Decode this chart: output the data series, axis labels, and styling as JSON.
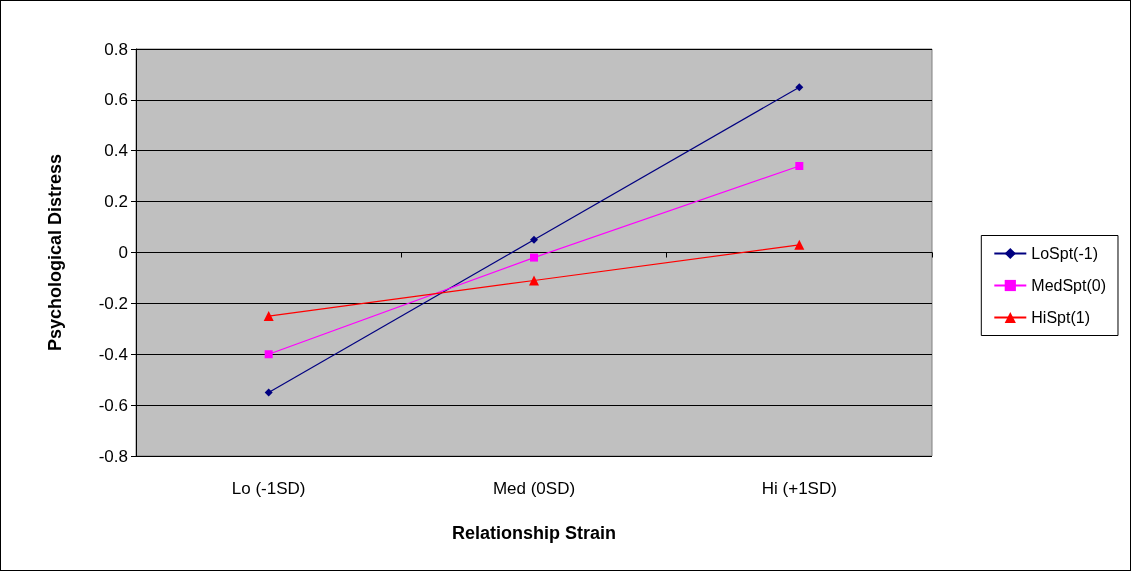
{
  "chart_data": {
    "type": "line",
    "xlabel": "Relationship Strain",
    "ylabel": "Psychological Distress",
    "categories": [
      "Lo (-1SD)",
      "Med (0SD)",
      "Hi (+1SD)"
    ],
    "series": [
      {
        "name": "LoSpt(-1)",
        "color": "#000080",
        "marker": "diamond",
        "values": [
          -0.55,
          0.05,
          0.65
        ]
      },
      {
        "name": "MedSpt(0)",
        "color": "#ff00ff",
        "marker": "square",
        "values": [
          -0.4,
          -0.02,
          0.34
        ]
      },
      {
        "name": "HiSpt(1)",
        "color": "#ff0000",
        "marker": "triangle",
        "values": [
          -0.25,
          -0.11,
          0.03
        ]
      }
    ],
    "ylim": [
      -0.8,
      0.8
    ],
    "yticks": [
      -0.8,
      -0.6,
      -0.4,
      -0.2,
      0,
      0.2,
      0.4,
      0.6,
      0.8
    ],
    "grid": "y",
    "legend": "right",
    "line_style": "solid"
  }
}
